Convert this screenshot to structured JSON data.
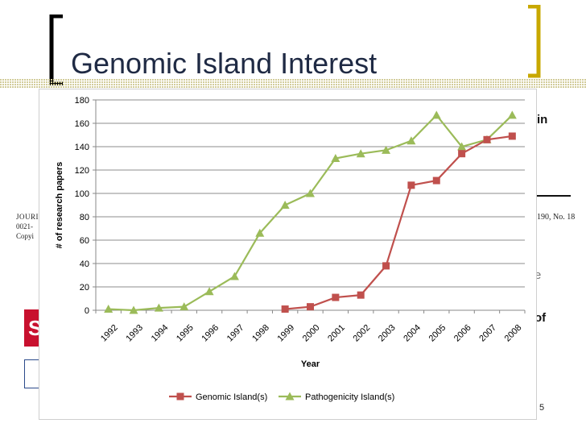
{
  "slide": {
    "title": "Genomic Island Interest",
    "page_number": "5",
    "accent_color": "#c8a800"
  },
  "background_fragments": {
    "right_text_1": "in",
    "right_text_2": "e",
    "right_text_3": "of",
    "journal_left_1": "JOURI",
    "journal_left_2": "0021-",
    "journal_left_3": "Copyi",
    "journal_right": "190, No. 18",
    "red_box_letter": "S"
  },
  "chart_data": {
    "type": "line",
    "x": [
      "1992",
      "1993",
      "1994",
      "1995",
      "1996",
      "1997",
      "1998",
      "1999",
      "2000",
      "2001",
      "2002",
      "2003",
      "2004",
      "2005",
      "2006",
      "2007",
      "2008"
    ],
    "xlabel": "Year",
    "ylabel": "# of research papers",
    "ylim": [
      0,
      180
    ],
    "yticks": [
      0,
      20,
      40,
      60,
      80,
      100,
      120,
      140,
      160,
      180
    ],
    "grid": true,
    "legend_position": "bottom",
    "series": [
      {
        "name": "Genomic Island(s)",
        "color": "#c0504d",
        "marker": "square",
        "values": [
          null,
          null,
          null,
          null,
          null,
          null,
          null,
          1,
          3,
          11,
          13,
          38,
          107,
          111,
          134,
          146,
          149
        ]
      },
      {
        "name": "Pathogenicity Island(s)",
        "color": "#9bbb59",
        "marker": "triangle",
        "values": [
          1,
          0,
          2,
          3,
          16,
          29,
          66,
          90,
          100,
          130,
          134,
          137,
          145,
          167,
          140,
          146,
          167
        ]
      }
    ]
  }
}
